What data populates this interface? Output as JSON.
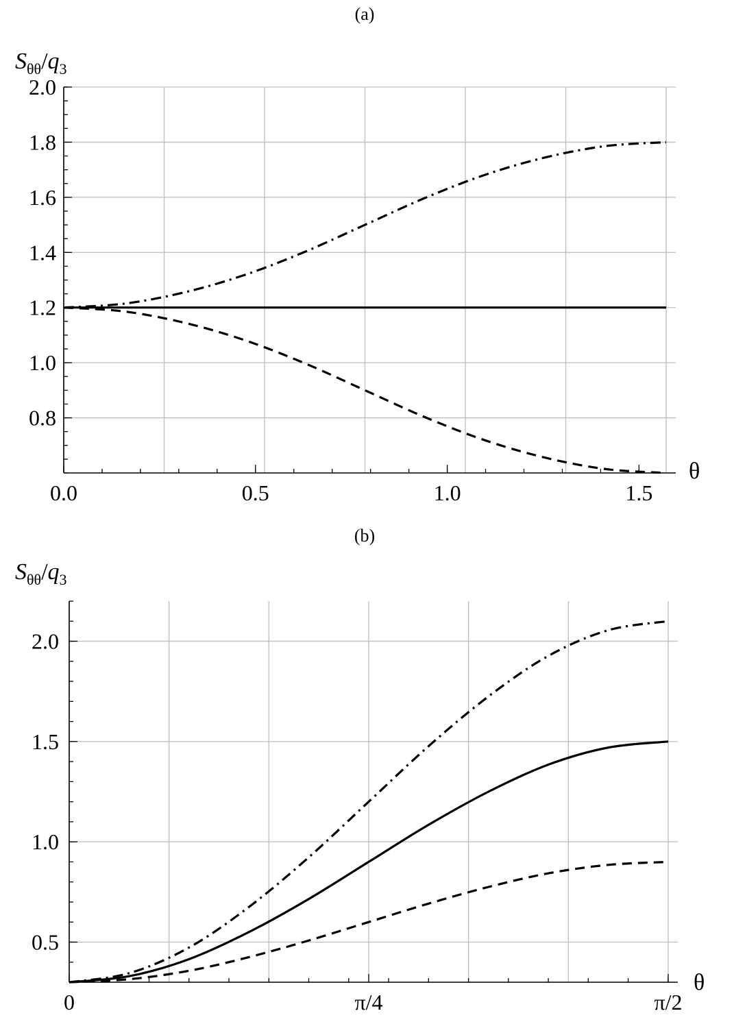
{
  "chart_data": [
    {
      "type": "line",
      "panel_label": "(a)",
      "ylabel": {
        "main": "S",
        "sub": "θθ",
        "rest": "/",
        "denom": "q",
        "denom_sub": "3"
      },
      "xlabel": "θ",
      "xlim": [
        0,
        1.5708
      ],
      "ylim": [
        0.6,
        2.0
      ],
      "xticks": [
        {
          "value": 0.0,
          "label": "0.0"
        },
        {
          "value": 0.5,
          "label": "0.5"
        },
        {
          "value": 1.0,
          "label": "1.0"
        },
        {
          "value": 1.5,
          "label": "1.5"
        }
      ],
      "yticks": [
        {
          "value": 0.8,
          "label": "0.8"
        },
        {
          "value": 1.0,
          "label": "1.0"
        },
        {
          "value": 1.2,
          "label": "1.2"
        },
        {
          "value": 1.4,
          "label": "1.4"
        },
        {
          "value": 1.6,
          "label": "1.6"
        },
        {
          "value": 1.8,
          "label": "1.8"
        },
        {
          "value": 2.0,
          "label": "2.0"
        }
      ],
      "x_minor_step": 0.1,
      "y_minor_step": 0.05,
      "xgrid": [
        0,
        0.2618,
        0.5236,
        0.7854,
        1.0472,
        1.309,
        1.5708
      ],
      "ygrid": [
        0.8,
        1.0,
        1.2,
        1.4,
        1.6,
        1.8,
        2.0
      ],
      "series": [
        {
          "style": "solid",
          "x": [
            0,
            0.1571,
            0.3142,
            0.4712,
            0.6283,
            0.7854,
            0.9425,
            1.0996,
            1.2566,
            1.4137,
            1.5708
          ],
          "y": [
            1.2,
            1.2,
            1.2,
            1.2,
            1.2,
            1.2,
            1.2,
            1.2,
            1.2,
            1.2,
            1.2
          ]
        },
        {
          "style": "dashdot",
          "x": [
            0,
            0.1571,
            0.3142,
            0.4712,
            0.6283,
            0.7854,
            0.9425,
            1.0996,
            1.2566,
            1.4137,
            1.5708
          ],
          "y": [
            1.2,
            1.214,
            1.255,
            1.318,
            1.402,
            1.5,
            1.598,
            1.682,
            1.745,
            1.786,
            1.8
          ]
        },
        {
          "style": "dashed",
          "x": [
            0,
            0.1571,
            0.3142,
            0.4712,
            0.6283,
            0.7854,
            0.9425,
            1.0996,
            1.2566,
            1.4137,
            1.5708
          ],
          "y": [
            1.2,
            1.186,
            1.145,
            1.082,
            0.998,
            0.9,
            0.802,
            0.718,
            0.655,
            0.614,
            0.6
          ]
        }
      ]
    },
    {
      "type": "line",
      "panel_label": "(b)",
      "ylabel": {
        "main": "S",
        "sub": "θθ",
        "rest": "/",
        "denom": "q",
        "denom_sub": "3"
      },
      "xlabel": "θ",
      "xlim": [
        0,
        1.5708
      ],
      "ylim": [
        0.3,
        2.2
      ],
      "xticks": [
        {
          "value": 0,
          "label": "0"
        },
        {
          "value": 0.7854,
          "label": "π/4"
        },
        {
          "value": 1.5708,
          "label": "π/2"
        }
      ],
      "yticks": [
        {
          "value": 0.5,
          "label": "0.5"
        },
        {
          "value": 1.0,
          "label": "1.0"
        },
        {
          "value": 1.5,
          "label": "1.5"
        },
        {
          "value": 2.0,
          "label": "2.0"
        }
      ],
      "x_minor_step": 0.1047,
      "y_minor_step": 0.1,
      "xgrid": [
        0,
        0.2618,
        0.5236,
        0.7854,
        1.0472,
        1.309,
        1.5708
      ],
      "ygrid": [
        0.5,
        1.0,
        1.5,
        2.0
      ],
      "series": [
        {
          "style": "solid",
          "x": [
            0,
            0.1571,
            0.3142,
            0.4712,
            0.6283,
            0.7854,
            0.9425,
            1.0996,
            1.2566,
            1.4137,
            1.5708
          ],
          "y": [
            0.3,
            0.33,
            0.415,
            0.55,
            0.715,
            0.9,
            1.085,
            1.25,
            1.385,
            1.47,
            1.5
          ]
        },
        {
          "style": "dashdot",
          "x": [
            0,
            0.1571,
            0.3142,
            0.4712,
            0.6283,
            0.7854,
            0.9425,
            1.0996,
            1.2566,
            1.4137,
            1.5708
          ],
          "y": [
            0.3,
            0.345,
            0.473,
            0.675,
            0.923,
            1.2,
            1.477,
            1.725,
            1.927,
            2.055,
            2.1
          ]
        },
        {
          "style": "dashed",
          "x": [
            0,
            0.1571,
            0.3142,
            0.4712,
            0.6283,
            0.7854,
            0.9425,
            1.0996,
            1.2566,
            1.4137,
            1.5708
          ],
          "y": [
            0.3,
            0.315,
            0.357,
            0.425,
            0.508,
            0.6,
            0.692,
            0.775,
            0.843,
            0.885,
            0.9
          ]
        }
      ]
    }
  ]
}
